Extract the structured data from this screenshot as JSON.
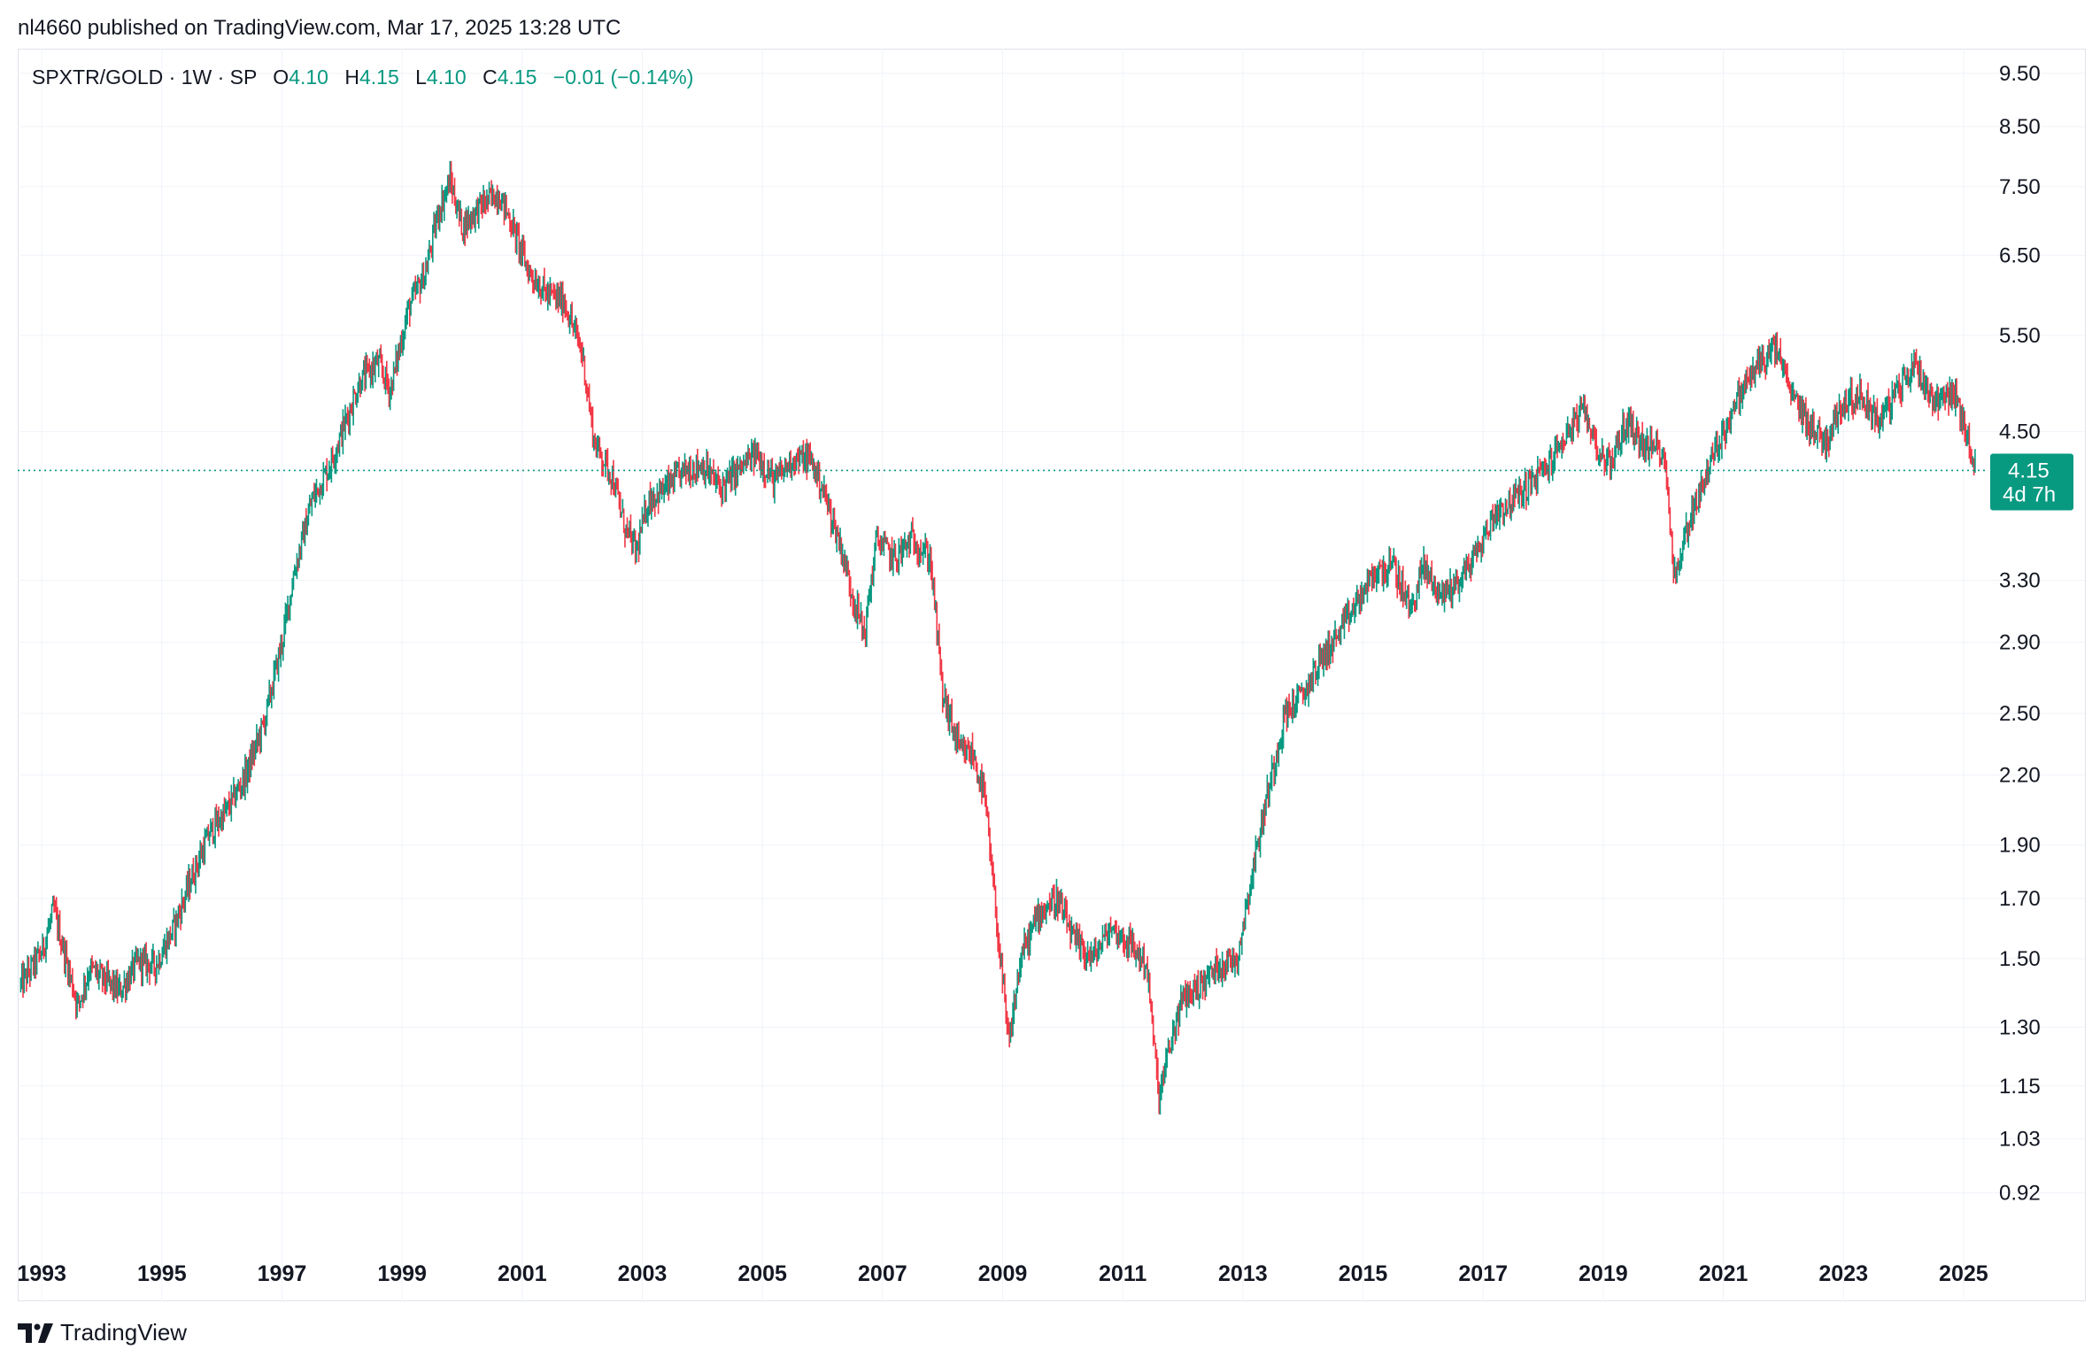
{
  "header": {
    "publisher_line": "nl4660 published on TradingView.com, Mar 17, 2025 13:28 UTC"
  },
  "legend": {
    "symbol": "SPXTR/GOLD · 1W · SP",
    "open_label": "O",
    "open_value": "4.10",
    "high_label": "H",
    "high_value": "4.15",
    "low_label": "L",
    "low_value": "4.10",
    "close_label": "C",
    "close_value": "4.15",
    "change": "−0.01 (−0.14%)"
  },
  "price_badge": {
    "price": "4.15",
    "countdown": "4d 7h"
  },
  "footer": {
    "brand": "TradingView"
  },
  "colors": {
    "up": "#089981",
    "down": "#f23645",
    "grid": "#f0f3fa",
    "badge": "#089981"
  },
  "chart_data": {
    "type": "line",
    "title": "SPXTR/GOLD · 1W · SP",
    "scale": "log",
    "ylim": [
      0.82,
      10.0
    ],
    "y_ticks": [
      "9.50",
      "8.50",
      "7.50",
      "6.50",
      "5.50",
      "4.50",
      "3.30",
      "2.90",
      "2.50",
      "2.20",
      "1.90",
      "1.70",
      "1.50",
      "1.30",
      "1.15",
      "1.03",
      "0.92"
    ],
    "x_tick_labels": [
      "1993",
      "1995",
      "1997",
      "1999",
      "2001",
      "2003",
      "2005",
      "2007",
      "2009",
      "2011",
      "2013",
      "2015",
      "2017",
      "2019",
      "2021",
      "2023",
      "2025"
    ],
    "xlim": [
      1992.6,
      2025.4
    ],
    "last_price": 4.15,
    "series": [
      {
        "name": "SPXTR/GOLD weekly close (approx.)",
        "x": [
          1992.65,
          1993.0,
          1993.2,
          1993.4,
          1993.6,
          1993.8,
          1994.0,
          1994.3,
          1994.6,
          1994.9,
          1995.2,
          1995.5,
          1995.8,
          1996.1,
          1996.4,
          1996.7,
          1997.0,
          1997.2,
          1997.5,
          1997.8,
          1998.0,
          1998.3,
          1998.6,
          1998.8,
          1999.1,
          1999.4,
          1999.6,
          1999.8,
          2000.0,
          2000.3,
          2000.6,
          2000.8,
          2001.1,
          2001.4,
          2001.7,
          2002.0,
          2002.2,
          2002.5,
          2002.7,
          2002.9,
          2003.1,
          2003.4,
          2003.7,
          2004.0,
          2004.3,
          2004.6,
          2004.9,
          2005.2,
          2005.5,
          2005.8,
          2006.0,
          2006.3,
          2006.5,
          2006.7,
          2006.9,
          2007.2,
          2007.5,
          2007.8,
          2008.0,
          2008.3,
          2008.5,
          2008.7,
          2008.9,
          2009.1,
          2009.3,
          2009.6,
          2009.9,
          2010.2,
          2010.5,
          2010.8,
          2011.1,
          2011.4,
          2011.6,
          2011.8,
          2012.0,
          2012.3,
          2012.6,
          2012.9,
          2013.2,
          2013.4,
          2013.7,
          2014.0,
          2014.3,
          2014.6,
          2014.9,
          2015.2,
          2015.5,
          2015.8,
          2016.0,
          2016.3,
          2016.6,
          2016.9,
          2017.2,
          2017.5,
          2017.8,
          2018.1,
          2018.4,
          2018.7,
          2018.9,
          2019.1,
          2019.4,
          2019.7,
          2020.0,
          2020.2,
          2020.4,
          2020.7,
          2021.0,
          2021.3,
          2021.6,
          2021.9,
          2022.1,
          2022.4,
          2022.7,
          2023.0,
          2023.3,
          2023.6,
          2023.9,
          2024.2,
          2024.5,
          2024.8,
          2025.0,
          2025.2
        ],
        "values": [
          1.42,
          1.52,
          1.66,
          1.5,
          1.36,
          1.47,
          1.44,
          1.4,
          1.49,
          1.48,
          1.6,
          1.78,
          1.95,
          2.05,
          2.2,
          2.45,
          2.9,
          3.35,
          3.9,
          4.2,
          4.5,
          5.0,
          5.2,
          4.9,
          5.8,
          6.3,
          7.1,
          7.6,
          6.9,
          7.2,
          7.4,
          7.0,
          6.3,
          6.0,
          5.9,
          5.3,
          4.4,
          4.1,
          3.7,
          3.5,
          3.9,
          4.0,
          4.15,
          4.2,
          4.0,
          4.15,
          4.3,
          4.05,
          4.25,
          4.25,
          4.0,
          3.55,
          3.2,
          2.95,
          3.6,
          3.45,
          3.6,
          3.45,
          2.6,
          2.3,
          2.3,
          2.1,
          1.62,
          1.25,
          1.5,
          1.65,
          1.7,
          1.55,
          1.5,
          1.6,
          1.55,
          1.48,
          1.12,
          1.26,
          1.38,
          1.42,
          1.48,
          1.5,
          1.85,
          2.1,
          2.5,
          2.6,
          2.8,
          2.95,
          3.15,
          3.35,
          3.4,
          3.1,
          3.4,
          3.2,
          3.3,
          3.5,
          3.8,
          3.9,
          4.05,
          4.2,
          4.5,
          4.7,
          4.35,
          4.2,
          4.6,
          4.35,
          4.35,
          3.3,
          3.7,
          4.1,
          4.5,
          4.9,
          5.2,
          5.35,
          4.9,
          4.6,
          4.4,
          4.8,
          4.85,
          4.6,
          4.9,
          5.2,
          4.8,
          4.9,
          4.6,
          4.15
        ]
      }
    ]
  }
}
